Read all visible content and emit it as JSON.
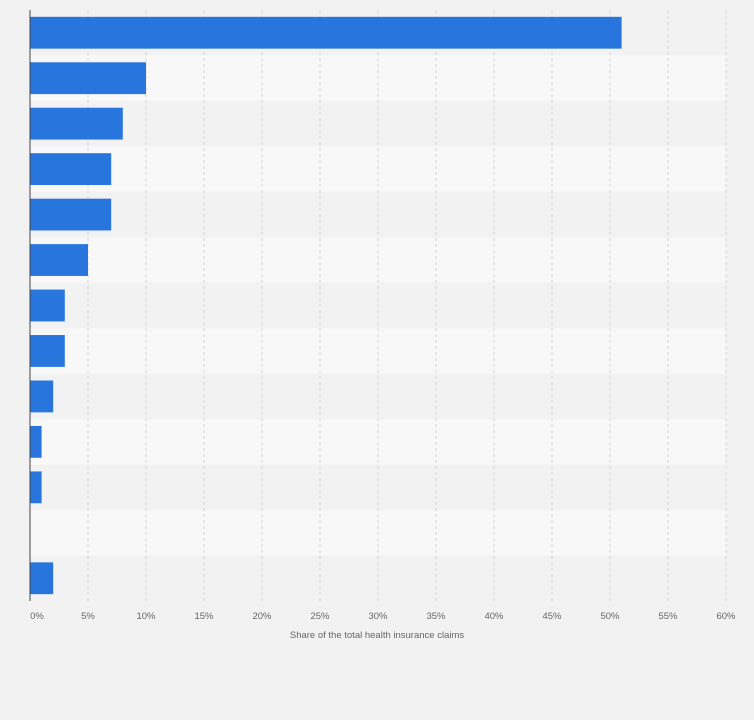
{
  "colors": {
    "bar": "#2876dd",
    "band_light": "#f8f8f8",
    "band_dark": "#f2f2f2",
    "grid": "#d4d4d4",
    "axis": "#444444",
    "tick_text": "#666666",
    "background": "#f2f2f2"
  },
  "chart_data": {
    "type": "bar",
    "orientation": "horizontal",
    "categories": [
      "",
      "",
      "",
      "",
      "",
      "",
      "",
      "",
      "",
      "",
      "",
      "",
      ""
    ],
    "values": [
      51,
      10,
      8,
      7,
      7,
      5,
      3,
      3,
      2,
      1,
      1,
      0,
      2
    ],
    "title": "",
    "xlabel": "Share of the total health insurance claims",
    "ylabel": "",
    "xlim": [
      0,
      60
    ],
    "x_ticks": [
      0,
      5,
      10,
      15,
      20,
      25,
      30,
      35,
      40,
      45,
      50,
      55,
      60
    ],
    "x_tick_labels": [
      "0%",
      "5%",
      "10%",
      "15%",
      "20%",
      "25%",
      "30%",
      "35%",
      "40%",
      "45%",
      "50%",
      "55%",
      "60%"
    ],
    "grid": "vertical-dashed",
    "legend": "none"
  }
}
